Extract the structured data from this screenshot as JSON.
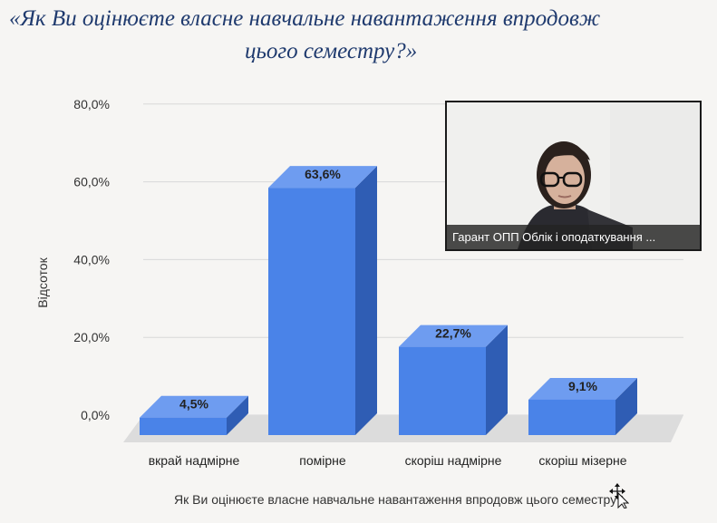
{
  "slide": {
    "title_line1": "«Як Ви оцінюєте власне навчальне навантаження впродовж",
    "title_line2": "цього семестру?»"
  },
  "chart_data": {
    "type": "bar",
    "categories": [
      "вкрай надмірне",
      "помірне",
      "скоріш надмірне",
      "скоріш мізерне"
    ],
    "values": [
      4.5,
      63.6,
      22.7,
      9.1
    ],
    "value_labels": [
      "4,5%",
      "63,6%",
      "22,7%",
      "9,1%"
    ],
    "yticks": [
      0,
      20,
      40,
      60,
      80
    ],
    "ytick_labels": [
      "0,0%",
      "20,0%",
      "40,0%",
      "60,0%",
      "80,0%"
    ],
    "ylim": [
      0,
      80
    ],
    "ylabel": "Відсоток",
    "xlabel": "Як Ви оцінюєте власне навчальне навантаження впродовж цього семестру?",
    "bar_color": "#4a83e8",
    "grid": true
  },
  "video": {
    "participant_name": "Гарант ОПП Облік і оподаткування ..."
  },
  "colors": {
    "title": "#1f3a6e",
    "bar_front": "#4a83e8",
    "bar_side": "#2f5db4",
    "bar_top": "#6e9cf0",
    "floor": "#dcdcdc",
    "grid": "#d8d8d8"
  },
  "icons": {
    "cursor": "move-cursor-icon"
  }
}
